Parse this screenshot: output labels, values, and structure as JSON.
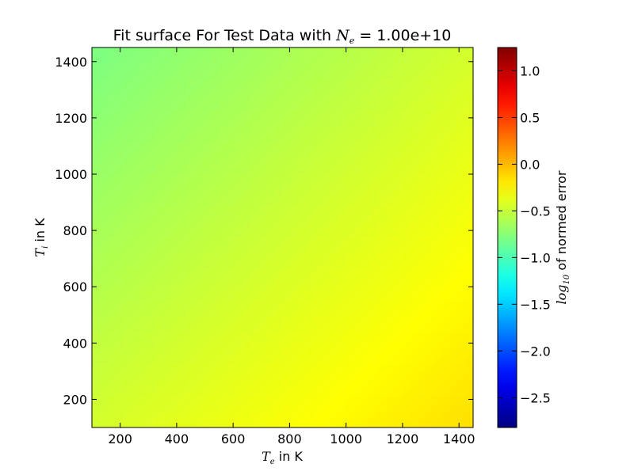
{
  "chart_data": {
    "type": "heatmap",
    "title": {
      "prefix": "Fit surface For Test Data with ",
      "var": "N",
      "sub": "e",
      "suffix": " = 1.00e+10"
    },
    "xlabel": {
      "var": "T",
      "sub": "e",
      "suffix": " in K"
    },
    "ylabel": {
      "var": "T",
      "sub": "i",
      "suffix": " in K"
    },
    "xlim": [
      100,
      1450
    ],
    "ylim": [
      100,
      1450
    ],
    "x_ticks": [
      200,
      400,
      600,
      800,
      1000,
      1200,
      1400
    ],
    "y_ticks": [
      200,
      400,
      600,
      800,
      1000,
      1200,
      1400
    ],
    "z_grid": {
      "x": [
        100,
        1450
      ],
      "y": [
        100,
        1450
      ],
      "z": [
        [
          -0.45,
          -0.15
        ],
        [
          -0.8,
          -0.45
        ]
      ]
    },
    "colorbar": {
      "colormap": "jet",
      "range": [
        -2.82,
        1.25
      ],
      "ticks": [
        -2.5,
        -2.0,
        -1.5,
        -1.0,
        -0.5,
        0.0,
        0.5,
        1.0
      ],
      "tick_labels": [
        "−2.5",
        "−2.0",
        "−1.5",
        "−1.0",
        "−0.5",
        "0.0",
        "0.5",
        "1.0"
      ],
      "label": {
        "var": "log",
        "sub": "10",
        "suffix": " of normed error"
      }
    }
  }
}
